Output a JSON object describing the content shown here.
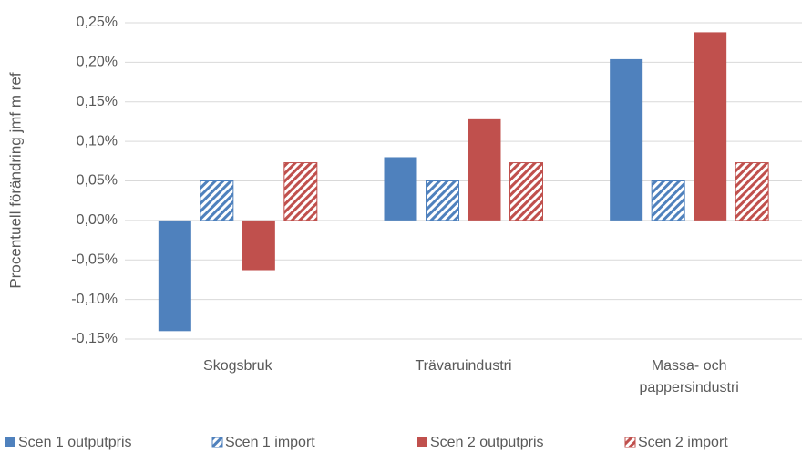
{
  "chart_data": {
    "type": "bar",
    "y_label": "Procentuell förändring jmf m ref",
    "categories": [
      "Skogsbruk",
      "Trävaruindustri",
      "Massa- och pappersindustri"
    ],
    "series": [
      {
        "name": "Scen 1 outputpris",
        "color": "#4f81bd",
        "hatch": false,
        "values": [
          -0.14,
          0.08,
          0.204
        ]
      },
      {
        "name": "Scen 1 import",
        "color": "#4f81bd",
        "hatch": true,
        "values": [
          0.05,
          0.05,
          0.05
        ]
      },
      {
        "name": "Scen 2 outputpris",
        "color": "#c0504d",
        "hatch": false,
        "values": [
          -0.063,
          0.128,
          0.238
        ]
      },
      {
        "name": "Scen 2 import",
        "color": "#c0504d",
        "hatch": true,
        "values": [
          0.073,
          0.073,
          0.073
        ]
      }
    ],
    "ylim": [
      -0.15,
      0.25
    ],
    "yticks": [
      {
        "value": -0.15,
        "label": "-0,15%"
      },
      {
        "value": -0.1,
        "label": "-0,10%"
      },
      {
        "value": -0.05,
        "label": "-0,05%"
      },
      {
        "value": 0,
        "label": "0,00%"
      },
      {
        "value": 0.05,
        "label": "0,05%"
      },
      {
        "value": 0.1,
        "label": "0,10%"
      },
      {
        "value": 0.15,
        "label": "0,15%"
      },
      {
        "value": 0.2,
        "label": "0,20%"
      },
      {
        "value": 0.25,
        "label": "0,25%"
      }
    ],
    "grid": true,
    "legend": "bottom"
  }
}
